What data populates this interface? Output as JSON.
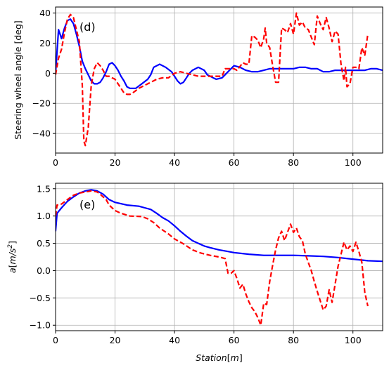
{
  "chart_data": [
    {
      "type": "line",
      "panel_label": "(d)",
      "ylabel": "Steering wheel angle [deg]",
      "xlabel": "",
      "xlim": [
        0,
        110
      ],
      "ylim": [
        -53,
        44
      ],
      "xticks": [
        0,
        20,
        40,
        60,
        80,
        100
      ],
      "yticks": [
        -40,
        -20,
        0,
        20,
        40
      ],
      "xtick_labels": [
        "0",
        "20",
        "40",
        "60",
        "80",
        "100"
      ],
      "ytick_labels": [
        "−40",
        "−20",
        "0",
        "20",
        "40"
      ],
      "grid": true,
      "series": [
        {
          "color": "#0000ff",
          "style": "solid",
          "points": [
            [
              0,
              0
            ],
            [
              1,
              29
            ],
            [
              2,
              23
            ],
            [
              3,
              30
            ],
            [
              4,
              35
            ],
            [
              5,
              36
            ],
            [
              6,
              33
            ],
            [
              7,
              26
            ],
            [
              8,
              18
            ],
            [
              9,
              8
            ],
            [
              10,
              3
            ],
            [
              11,
              -1
            ],
            [
              12,
              -5
            ],
            [
              13,
              -7
            ],
            [
              14,
              -7
            ],
            [
              15,
              -6
            ],
            [
              16,
              -3
            ],
            [
              17,
              1
            ],
            [
              18,
              6
            ],
            [
              19,
              7
            ],
            [
              20,
              5
            ],
            [
              21,
              2
            ],
            [
              22,
              -2
            ],
            [
              23,
              -5
            ],
            [
              24,
              -9
            ],
            [
              25,
              -10
            ],
            [
              27,
              -10
            ],
            [
              29,
              -7
            ],
            [
              31,
              -4
            ],
            [
              32,
              -1
            ],
            [
              33,
              4
            ],
            [
              35,
              6
            ],
            [
              37,
              4
            ],
            [
              39,
              1
            ],
            [
              40,
              -2
            ],
            [
              41,
              -5
            ],
            [
              42,
              -7
            ],
            [
              43,
              -6
            ],
            [
              44,
              -3
            ],
            [
              45,
              0
            ],
            [
              46,
              2
            ],
            [
              48,
              4
            ],
            [
              50,
              2
            ],
            [
              51,
              -1
            ],
            [
              53,
              -3
            ],
            [
              54,
              -4
            ],
            [
              56,
              -3
            ],
            [
              58,
              1
            ],
            [
              60,
              5
            ],
            [
              62,
              4
            ],
            [
              64,
              2
            ],
            [
              66,
              1
            ],
            [
              68,
              1
            ],
            [
              70,
              2
            ],
            [
              72,
              3
            ],
            [
              75,
              3
            ],
            [
              78,
              3
            ],
            [
              80,
              3
            ],
            [
              82,
              4
            ],
            [
              84,
              4
            ],
            [
              86,
              3
            ],
            [
              88,
              3
            ],
            [
              90,
              1
            ],
            [
              92,
              1
            ],
            [
              94,
              2
            ],
            [
              96,
              2
            ],
            [
              98,
              2
            ],
            [
              100,
              2
            ],
            [
              102,
              2
            ],
            [
              104,
              2
            ],
            [
              106,
              3
            ],
            [
              108,
              3
            ],
            [
              110,
              2
            ]
          ]
        },
        {
          "color": "#ff0000",
          "style": "dashed",
          "points": [
            [
              0,
              -1
            ],
            [
              1,
              10
            ],
            [
              2,
              16
            ],
            [
              3,
              27
            ],
            [
              4,
              36
            ],
            [
              5,
              39
            ],
            [
              6,
              37
            ],
            [
              7,
              29
            ],
            [
              8,
              21
            ],
            [
              9,
              -8
            ],
            [
              9.5,
              -45
            ],
            [
              10,
              -48
            ],
            [
              11,
              -36
            ],
            [
              12,
              -8
            ],
            [
              13,
              3
            ],
            [
              14,
              7
            ],
            [
              15,
              5
            ],
            [
              16,
              2
            ],
            [
              17,
              -2
            ],
            [
              18,
              -2
            ],
            [
              19,
              -3
            ],
            [
              20,
              -4
            ],
            [
              21,
              -7
            ],
            [
              22,
              -10
            ],
            [
              23,
              -13
            ],
            [
              24,
              -14
            ],
            [
              25,
              -14
            ],
            [
              26,
              -13
            ],
            [
              28,
              -10
            ],
            [
              30,
              -8
            ],
            [
              32,
              -6
            ],
            [
              34,
              -4
            ],
            [
              36,
              -3
            ],
            [
              38,
              -3
            ],
            [
              40,
              0
            ],
            [
              42,
              1
            ],
            [
              44,
              0
            ],
            [
              46,
              -1
            ],
            [
              48,
              -2
            ],
            [
              52,
              -2
            ],
            [
              56,
              -2
            ],
            [
              57,
              3
            ],
            [
              58,
              3
            ],
            [
              60,
              3
            ],
            [
              61,
              2
            ],
            [
              63,
              7
            ],
            [
              64,
              6
            ],
            [
              65,
              6
            ],
            [
              66,
              25
            ],
            [
              67,
              24
            ],
            [
              68,
              22
            ],
            [
              69,
              17
            ],
            [
              70,
              23
            ],
            [
              70.5,
              30
            ],
            [
              71,
              20
            ],
            [
              72,
              17
            ],
            [
              73,
              5
            ],
            [
              74,
              -6
            ],
            [
              75,
              -6
            ],
            [
              76,
              30
            ],
            [
              77,
              29
            ],
            [
              78,
              27
            ],
            [
              79,
              33
            ],
            [
              80,
              26
            ],
            [
              81,
              40
            ],
            [
              82,
              32
            ],
            [
              83,
              34
            ],
            [
              84,
              30
            ],
            [
              85,
              29
            ],
            [
              86,
              24
            ],
            [
              87,
              19
            ],
            [
              88,
              38
            ],
            [
              89,
              33
            ],
            [
              90,
              29
            ],
            [
              91,
              37
            ],
            [
              92,
              30
            ],
            [
              93,
              21
            ],
            [
              94,
              28
            ],
            [
              95,
              26
            ],
            [
              96,
              6
            ],
            [
              97,
              -5
            ],
            [
              97.5,
              4
            ],
            [
              98,
              -9
            ],
            [
              99,
              -7
            ],
            [
              100,
              4
            ],
            [
              101,
              4
            ],
            [
              102,
              3
            ],
            [
              103,
              17
            ],
            [
              104,
              12
            ],
            [
              105,
              26
            ]
          ]
        }
      ]
    },
    {
      "type": "line",
      "panel_label": "(e)",
      "ylabel": "a[m/s²]",
      "xlabel": "Station[m]",
      "xlim": [
        0,
        110
      ],
      "ylim": [
        -1.1,
        1.6
      ],
      "xticks": [
        0,
        20,
        40,
        60,
        80,
        100
      ],
      "yticks": [
        -1.0,
        -0.5,
        0.0,
        0.5,
        1.0,
        1.5
      ],
      "xtick_labels": [
        "0",
        "20",
        "40",
        "60",
        "80",
        "100"
      ],
      "ytick_labels": [
        "−1.0",
        "−0.5",
        "0.0",
        "0.5",
        "1.0",
        "1.5"
      ],
      "grid": true,
      "series": [
        {
          "color": "#0000ff",
          "style": "solid",
          "points": [
            [
              0,
              0.72
            ],
            [
              0.5,
              1.05
            ],
            [
              2,
              1.15
            ],
            [
              4,
              1.27
            ],
            [
              6,
              1.35
            ],
            [
              8,
              1.42
            ],
            [
              10,
              1.46
            ],
            [
              12,
              1.48
            ],
            [
              14,
              1.46
            ],
            [
              16,
              1.4
            ],
            [
              18,
              1.3
            ],
            [
              20,
              1.25
            ],
            [
              24,
              1.2
            ],
            [
              28,
              1.18
            ],
            [
              30,
              1.15
            ],
            [
              32,
              1.12
            ],
            [
              34,
              1.05
            ],
            [
              36,
              0.97
            ],
            [
              38,
              0.91
            ],
            [
              40,
              0.82
            ],
            [
              42,
              0.72
            ],
            [
              44,
              0.63
            ],
            [
              46,
              0.55
            ],
            [
              48,
              0.5
            ],
            [
              50,
              0.45
            ],
            [
              52,
              0.42
            ],
            [
              55,
              0.38
            ],
            [
              58,
              0.35
            ],
            [
              60,
              0.33
            ],
            [
              65,
              0.3
            ],
            [
              70,
              0.28
            ],
            [
              75,
              0.28
            ],
            [
              80,
              0.28
            ],
            [
              85,
              0.27
            ],
            [
              90,
              0.26
            ],
            [
              95,
              0.24
            ],
            [
              100,
              0.21
            ],
            [
              105,
              0.18
            ],
            [
              110,
              0.17
            ]
          ]
        },
        {
          "color": "#ff0000",
          "style": "dashed",
          "points": [
            [
              0,
              1.0
            ],
            [
              0.5,
              1.2
            ],
            [
              2,
              1.22
            ],
            [
              4,
              1.3
            ],
            [
              6,
              1.38
            ],
            [
              8,
              1.42
            ],
            [
              10,
              1.44
            ],
            [
              12,
              1.46
            ],
            [
              14,
              1.44
            ],
            [
              15,
              1.4
            ],
            [
              17,
              1.3
            ],
            [
              18,
              1.2
            ],
            [
              20,
              1.1
            ],
            [
              22,
              1.05
            ],
            [
              25,
              1.0
            ],
            [
              29,
              0.99
            ],
            [
              31,
              0.95
            ],
            [
              33,
              0.88
            ],
            [
              35,
              0.78
            ],
            [
              38,
              0.67
            ],
            [
              40,
              0.58
            ],
            [
              43,
              0.49
            ],
            [
              46,
              0.38
            ],
            [
              49,
              0.32
            ],
            [
              52,
              0.28
            ],
            [
              55,
              0.25
            ],
            [
              57,
              0.22
            ],
            [
              58,
              -0.05
            ],
            [
              59,
              -0.05
            ],
            [
              60,
              0.0
            ],
            [
              61,
              -0.15
            ],
            [
              62,
              -0.32
            ],
            [
              63,
              -0.25
            ],
            [
              64,
              -0.43
            ],
            [
              65,
              -0.57
            ],
            [
              66,
              -0.68
            ],
            [
              67,
              -0.75
            ],
            [
              68,
              -0.86
            ],
            [
              69,
              -1.0
            ],
            [
              70,
              -0.6
            ],
            [
              71,
              -0.62
            ],
            [
              72,
              -0.2
            ],
            [
              73,
              0.1
            ],
            [
              74,
              0.38
            ],
            [
              75,
              0.6
            ],
            [
              76,
              0.72
            ],
            [
              77,
              0.55
            ],
            [
              78,
              0.7
            ],
            [
              79,
              0.85
            ],
            [
              80,
              0.7
            ],
            [
              81,
              0.78
            ],
            [
              82,
              0.62
            ],
            [
              83,
              0.55
            ],
            [
              84,
              0.3
            ],
            [
              85,
              0.15
            ],
            [
              86,
              0.0
            ],
            [
              87,
              -0.2
            ],
            [
              88,
              -0.38
            ],
            [
              89,
              -0.55
            ],
            [
              90,
              -0.72
            ],
            [
              91,
              -0.65
            ],
            [
              92,
              -0.35
            ],
            [
              93,
              -0.58
            ],
            [
              94,
              -0.25
            ],
            [
              95,
              0.08
            ],
            [
              96,
              0.3
            ],
            [
              97,
              0.52
            ],
            [
              98,
              0.38
            ],
            [
              99,
              0.45
            ],
            [
              100,
              0.35
            ],
            [
              101,
              0.52
            ],
            [
              102,
              0.35
            ],
            [
              103,
              0.15
            ],
            [
              104,
              -0.4
            ],
            [
              105,
              -0.65
            ]
          ]
        }
      ]
    }
  ]
}
